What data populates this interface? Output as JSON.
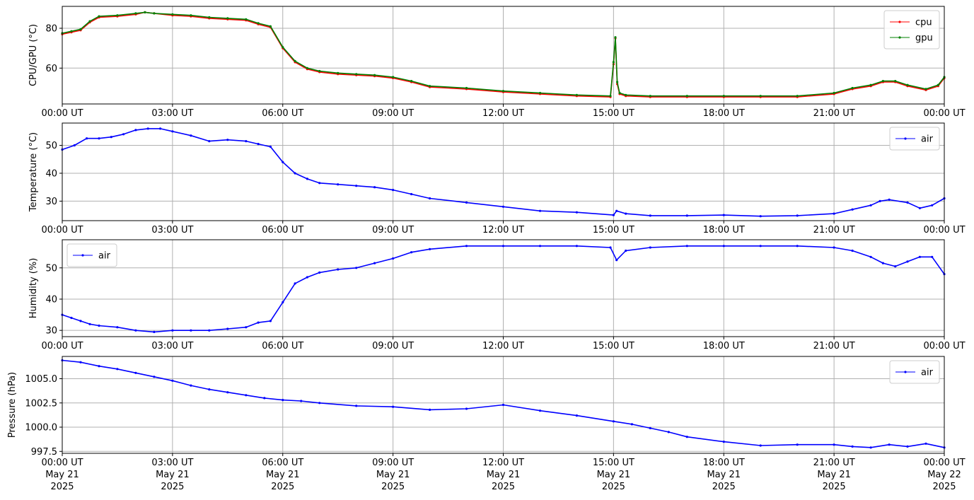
{
  "figure": {
    "x_tick_labels": [
      "00:00 UT",
      "03:00 UT",
      "06:00 UT",
      "09:00 UT",
      "12:00 UT",
      "15:00 UT",
      "18:00 UT",
      "21:00 UT",
      "00:00 UT"
    ],
    "bottom_date_lines": [
      [
        "May 21",
        "2025"
      ],
      [
        "May 21",
        "2025"
      ],
      [
        "May 21",
        "2025"
      ],
      [
        "May 21",
        "2025"
      ],
      [
        "May 21",
        "2025"
      ],
      [
        "May 21",
        "2025"
      ],
      [
        "May 21",
        "2025"
      ],
      [
        "May 21",
        "2025"
      ],
      [
        "May 22",
        "2025"
      ]
    ]
  },
  "chart_data": [
    {
      "type": "line",
      "ylabel": "CPU/GPU (°C)",
      "xlim": [
        "2025-05-21 00:00",
        "2025-05-22 00:00"
      ],
      "ylim": [
        42,
        91
      ],
      "yticks": [
        60,
        80
      ],
      "ytick_labels": [
        "60",
        "80"
      ],
      "grid": true,
      "legend": "top-right",
      "series": [
        {
          "name": "cpu",
          "color": "#ff0000",
          "x": [
            "2025-05-21 00:00",
            "2025-05-21 00:15",
            "2025-05-21 00:30",
            "2025-05-21 00:45",
            "2025-05-21 01:00",
            "2025-05-21 01:30",
            "2025-05-21 02:00",
            "2025-05-21 02:15",
            "2025-05-21 02:30",
            "2025-05-21 03:00",
            "2025-05-21 03:30",
            "2025-05-21 04:00",
            "2025-05-21 04:30",
            "2025-05-21 05:00",
            "2025-05-21 05:20",
            "2025-05-21 05:40",
            "2025-05-21 06:00",
            "2025-05-21 06:20",
            "2025-05-21 06:40",
            "2025-05-21 07:00",
            "2025-05-21 07:30",
            "2025-05-21 08:00",
            "2025-05-21 08:30",
            "2025-05-21 09:00",
            "2025-05-21 09:30",
            "2025-05-21 10:00",
            "2025-05-21 11:00",
            "2025-05-21 12:00",
            "2025-05-21 13:00",
            "2025-05-21 14:00",
            "2025-05-21 14:55",
            "2025-05-21 15:00",
            "2025-05-21 15:03",
            "2025-05-21 15:06",
            "2025-05-21 15:10",
            "2025-05-21 15:20",
            "2025-05-21 16:00",
            "2025-05-21 17:00",
            "2025-05-21 18:00",
            "2025-05-21 19:00",
            "2025-05-21 20:00",
            "2025-05-21 21:00",
            "2025-05-21 21:30",
            "2025-05-21 22:00",
            "2025-05-21 22:20",
            "2025-05-21 22:40",
            "2025-05-21 23:00",
            "2025-05-21 23:30",
            "2025-05-21 23:50",
            "2025-05-22 00:00"
          ],
          "y": [
            77,
            78,
            79,
            83,
            85.5,
            86,
            87,
            88,
            87.5,
            86.5,
            86,
            85,
            84.5,
            84,
            82,
            80.5,
            70,
            63,
            59.5,
            58,
            57,
            56.5,
            56,
            55,
            53,
            50.5,
            49.5,
            48,
            47,
            46,
            45.5,
            62,
            75,
            52,
            47,
            46,
            45.5,
            45.5,
            45.5,
            45.5,
            45.5,
            47,
            49.5,
            51,
            53,
            53,
            51,
            49,
            51,
            55
          ]
        },
        {
          "name": "gpu",
          "color": "#008000",
          "x": [
            "2025-05-21 00:00",
            "2025-05-21 00:15",
            "2025-05-21 00:30",
            "2025-05-21 00:45",
            "2025-05-21 01:00",
            "2025-05-21 01:30",
            "2025-05-21 02:00",
            "2025-05-21 02:15",
            "2025-05-21 02:30",
            "2025-05-21 03:00",
            "2025-05-21 03:30",
            "2025-05-21 04:00",
            "2025-05-21 04:30",
            "2025-05-21 05:00",
            "2025-05-21 05:20",
            "2025-05-21 05:40",
            "2025-05-21 06:00",
            "2025-05-21 06:20",
            "2025-05-21 06:40",
            "2025-05-21 07:00",
            "2025-05-21 07:30",
            "2025-05-21 08:00",
            "2025-05-21 08:30",
            "2025-05-21 09:00",
            "2025-05-21 09:30",
            "2025-05-21 10:00",
            "2025-05-21 11:00",
            "2025-05-21 12:00",
            "2025-05-21 13:00",
            "2025-05-21 14:00",
            "2025-05-21 14:55",
            "2025-05-21 15:00",
            "2025-05-21 15:03",
            "2025-05-21 15:06",
            "2025-05-21 15:10",
            "2025-05-21 15:20",
            "2025-05-21 16:00",
            "2025-05-21 17:00",
            "2025-05-21 18:00",
            "2025-05-21 19:00",
            "2025-05-21 20:00",
            "2025-05-21 21:00",
            "2025-05-21 21:30",
            "2025-05-21 22:00",
            "2025-05-21 22:20",
            "2025-05-21 22:40",
            "2025-05-21 23:00",
            "2025-05-21 23:30",
            "2025-05-21 23:50",
            "2025-05-22 00:00"
          ],
          "y": [
            77.5,
            78.5,
            79.5,
            83.5,
            86,
            86.5,
            87.5,
            88,
            87.5,
            87,
            86.5,
            85.5,
            85,
            84.5,
            82.5,
            81,
            70.5,
            63.5,
            60,
            58.5,
            57.5,
            57,
            56.5,
            55.5,
            53.5,
            51,
            50,
            48.5,
            47.5,
            46.5,
            46,
            63,
            75.5,
            53,
            47.5,
            46.5,
            46,
            46,
            46,
            46,
            46,
            47.5,
            50,
            51.5,
            53.5,
            53.5,
            51.5,
            49.5,
            51.5,
            55.5
          ]
        }
      ]
    },
    {
      "type": "line",
      "ylabel": "Temperature (°C)",
      "xlim": [
        "2025-05-21 00:00",
        "2025-05-22 00:00"
      ],
      "ylim": [
        23,
        58
      ],
      "yticks": [
        30,
        40,
        50
      ],
      "ytick_labels": [
        "30",
        "40",
        "50"
      ],
      "grid": true,
      "legend": "top-right",
      "series": [
        {
          "name": "air",
          "color": "#0000ff",
          "x": [
            "2025-05-21 00:00",
            "2025-05-21 00:20",
            "2025-05-21 00:40",
            "2025-05-21 01:00",
            "2025-05-21 01:20",
            "2025-05-21 01:40",
            "2025-05-21 02:00",
            "2025-05-21 02:20",
            "2025-05-21 02:40",
            "2025-05-21 03:00",
            "2025-05-21 03:30",
            "2025-05-21 04:00",
            "2025-05-21 04:30",
            "2025-05-21 05:00",
            "2025-05-21 05:20",
            "2025-05-21 05:40",
            "2025-05-21 06:00",
            "2025-05-21 06:20",
            "2025-05-21 06:40",
            "2025-05-21 07:00",
            "2025-05-21 07:30",
            "2025-05-21 08:00",
            "2025-05-21 08:30",
            "2025-05-21 09:00",
            "2025-05-21 09:30",
            "2025-05-21 10:00",
            "2025-05-21 11:00",
            "2025-05-21 12:00",
            "2025-05-21 13:00",
            "2025-05-21 14:00",
            "2025-05-21 15:00",
            "2025-05-21 15:05",
            "2025-05-21 15:20",
            "2025-05-21 16:00",
            "2025-05-21 17:00",
            "2025-05-21 18:00",
            "2025-05-21 19:00",
            "2025-05-21 20:00",
            "2025-05-21 21:00",
            "2025-05-21 21:30",
            "2025-05-21 22:00",
            "2025-05-21 22:15",
            "2025-05-21 22:30",
            "2025-05-21 23:00",
            "2025-05-21 23:20",
            "2025-05-21 23:40",
            "2025-05-22 00:00"
          ],
          "y": [
            48.5,
            50,
            52.5,
            52.5,
            53,
            54,
            55.5,
            56,
            56,
            55,
            53.5,
            51.5,
            52,
            51.5,
            50.5,
            49.5,
            44,
            40,
            38,
            36.5,
            36,
            35.5,
            35,
            34,
            32.5,
            31,
            29.5,
            28,
            26.5,
            26,
            25,
            26.5,
            25.5,
            24.8,
            24.8,
            25,
            24.6,
            24.8,
            25.5,
            27,
            28.5,
            30,
            30.5,
            29.5,
            27.5,
            28.5,
            31
          ]
        }
      ]
    },
    {
      "type": "line",
      "ylabel": "Humidity (%)",
      "xlim": [
        "2025-05-21 00:00",
        "2025-05-22 00:00"
      ],
      "ylim": [
        28,
        59
      ],
      "yticks": [
        30,
        40,
        50
      ],
      "ytick_labels": [
        "30",
        "40",
        "50"
      ],
      "grid": true,
      "legend": "top-left",
      "series": [
        {
          "name": "air",
          "color": "#0000ff",
          "x": [
            "2025-05-21 00:00",
            "2025-05-21 00:15",
            "2025-05-21 00:30",
            "2025-05-21 00:45",
            "2025-05-21 01:00",
            "2025-05-21 01:30",
            "2025-05-21 02:00",
            "2025-05-21 02:30",
            "2025-05-21 03:00",
            "2025-05-21 03:30",
            "2025-05-21 04:00",
            "2025-05-21 04:30",
            "2025-05-21 05:00",
            "2025-05-21 05:20",
            "2025-05-21 05:40",
            "2025-05-21 06:00",
            "2025-05-21 06:20",
            "2025-05-21 06:40",
            "2025-05-21 07:00",
            "2025-05-21 07:30",
            "2025-05-21 08:00",
            "2025-05-21 08:30",
            "2025-05-21 09:00",
            "2025-05-21 09:30",
            "2025-05-21 10:00",
            "2025-05-21 11:00",
            "2025-05-21 12:00",
            "2025-05-21 13:00",
            "2025-05-21 14:00",
            "2025-05-21 14:55",
            "2025-05-21 15:05",
            "2025-05-21 15:20",
            "2025-05-21 16:00",
            "2025-05-21 17:00",
            "2025-05-21 18:00",
            "2025-05-21 19:00",
            "2025-05-21 20:00",
            "2025-05-21 21:00",
            "2025-05-21 21:30",
            "2025-05-21 22:00",
            "2025-05-21 22:20",
            "2025-05-21 22:40",
            "2025-05-21 23:00",
            "2025-05-21 23:20",
            "2025-05-21 23:40",
            "2025-05-22 00:00"
          ],
          "y": [
            35,
            34,
            33,
            32,
            31.5,
            31,
            30,
            29.5,
            30,
            30,
            30,
            30.5,
            31,
            32.5,
            33,
            39,
            45,
            47,
            48.5,
            49.5,
            50,
            51.5,
            53,
            55,
            56,
            57,
            57,
            57,
            57,
            56.5,
            52.5,
            55.5,
            56.5,
            57,
            57,
            57,
            57,
            56.5,
            55.5,
            53.5,
            51.5,
            50.5,
            52,
            53.5,
            53.5,
            48
          ]
        }
      ]
    },
    {
      "type": "line",
      "ylabel": "Pressure (hPa)",
      "xlim": [
        "2025-05-21 00:00",
        "2025-05-22 00:00"
      ],
      "ylim": [
        997.3,
        1007.3
      ],
      "yticks": [
        997.5,
        1000.0,
        1002.5,
        1005.0
      ],
      "ytick_labels": [
        "997.5",
        "1000.0",
        "1002.5",
        "1005.0"
      ],
      "grid": true,
      "legend": "top-right",
      "series": [
        {
          "name": "air",
          "color": "#0000ff",
          "x": [
            "2025-05-21 00:00",
            "2025-05-21 00:30",
            "2025-05-21 01:00",
            "2025-05-21 01:30",
            "2025-05-21 02:00",
            "2025-05-21 02:30",
            "2025-05-21 03:00",
            "2025-05-21 03:30",
            "2025-05-21 04:00",
            "2025-05-21 04:30",
            "2025-05-21 05:00",
            "2025-05-21 05:30",
            "2025-05-21 06:00",
            "2025-05-21 06:30",
            "2025-05-21 07:00",
            "2025-05-21 08:00",
            "2025-05-21 09:00",
            "2025-05-21 10:00",
            "2025-05-21 11:00",
            "2025-05-21 12:00",
            "2025-05-21 13:00",
            "2025-05-21 14:00",
            "2025-05-21 15:00",
            "2025-05-21 15:30",
            "2025-05-21 16:00",
            "2025-05-21 16:30",
            "2025-05-21 17:00",
            "2025-05-21 18:00",
            "2025-05-21 19:00",
            "2025-05-21 20:00",
            "2025-05-21 21:00",
            "2025-05-21 21:30",
            "2025-05-21 22:00",
            "2025-05-21 22:30",
            "2025-05-21 23:00",
            "2025-05-21 23:30",
            "2025-05-22 00:00"
          ],
          "y": [
            1006.9,
            1006.7,
            1006.3,
            1006.0,
            1005.6,
            1005.2,
            1004.8,
            1004.3,
            1003.9,
            1003.6,
            1003.3,
            1003.0,
            1002.8,
            1002.7,
            1002.5,
            1002.2,
            1002.1,
            1001.8,
            1001.9,
            1002.3,
            1001.7,
            1001.2,
            1000.6,
            1000.3,
            999.9,
            999.5,
            999.0,
            998.5,
            998.1,
            998.2,
            998.2,
            998.0,
            997.9,
            998.2,
            998.0,
            998.3,
            997.9
          ]
        }
      ]
    }
  ]
}
